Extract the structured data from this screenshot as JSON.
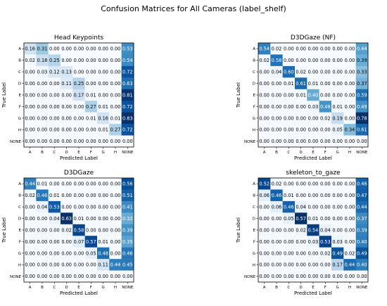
{
  "figure": {
    "suptitle": "Confusion Matrices for All Cameras (label_shelf)"
  },
  "chart_data": [
    {
      "type": "heatmap",
      "title": "Head Keypoints",
      "xlabel": "Predicted Label",
      "ylabel": "True Label",
      "rows": [
        "A",
        "B",
        "C",
        "D",
        "E",
        "F",
        "G",
        "H",
        "NONE"
      ],
      "cols": [
        "A",
        "B",
        "C",
        "D",
        "E",
        "F",
        "G",
        "H",
        "NONE"
      ],
      "values": [
        [
          0.16,
          0.31,
          0.0,
          0.0,
          0.0,
          0.0,
          0.0,
          0.0,
          0.53
        ],
        [
          0.02,
          0.18,
          0.25,
          0.0,
          0.0,
          0.0,
          0.0,
          0.0,
          0.54
        ],
        [
          0.0,
          0.03,
          0.12,
          0.13,
          0.0,
          0.0,
          0.0,
          0.0,
          0.72
        ],
        [
          0.0,
          0.0,
          0.0,
          0.11,
          0.25,
          0.0,
          0.0,
          0.0,
          0.63
        ],
        [
          0.0,
          0.0,
          0.0,
          0.0,
          0.17,
          0.01,
          0.0,
          0.0,
          0.81
        ],
        [
          0.0,
          0.0,
          0.0,
          0.0,
          0.0,
          0.27,
          0.01,
          0.0,
          0.72
        ],
        [
          0.0,
          0.0,
          0.0,
          0.0,
          0.0,
          0.01,
          0.16,
          0.01,
          0.83
        ],
        [
          0.0,
          0.0,
          0.0,
          0.0,
          0.0,
          0.0,
          0.01,
          0.27,
          0.72
        ],
        [
          0.0,
          0.0,
          0.0,
          0.0,
          0.0,
          0.0,
          0.0,
          0.0,
          0.0
        ]
      ],
      "colormap": "Blues",
      "vmin": 0,
      "vmax": 0.83
    },
    {
      "type": "heatmap",
      "title": "D3DGaze (NF)",
      "xlabel": "Predicted Label",
      "ylabel": "True Label",
      "rows": [
        "A",
        "B",
        "C",
        "D",
        "E",
        "F",
        "G",
        "H",
        "NONE"
      ],
      "cols": [
        "A",
        "B",
        "C",
        "D",
        "E",
        "F",
        "G",
        "H",
        "NONE"
      ],
      "values": [
        [
          0.54,
          0.02,
          0.0,
          0.0,
          0.0,
          0.0,
          0.0,
          0.0,
          0.44
        ],
        [
          0.02,
          0.58,
          0.0,
          0.0,
          0.0,
          0.0,
          0.0,
          0.0,
          0.39
        ],
        [
          0.0,
          0.04,
          0.6,
          0.02,
          0.0,
          0.0,
          0.0,
          0.0,
          0.33
        ],
        [
          0.0,
          0.0,
          0.01,
          0.61,
          0.01,
          0.0,
          0.0,
          0.0,
          0.37
        ],
        [
          0.0,
          0.0,
          0.0,
          0.01,
          0.4,
          0.0,
          0.0,
          0.0,
          0.59
        ],
        [
          0.0,
          0.0,
          0.0,
          0.0,
          0.03,
          0.48,
          0.01,
          0.0,
          0.49
        ],
        [
          0.0,
          0.0,
          0.0,
          0.0,
          0.0,
          0.02,
          0.19,
          0.0,
          0.78
        ],
        [
          0.0,
          0.0,
          0.0,
          0.0,
          0.0,
          0.0,
          0.05,
          0.34,
          0.61
        ],
        [
          0.0,
          0.0,
          0.0,
          0.0,
          0.0,
          0.0,
          0.0,
          0.0,
          0.0
        ]
      ],
      "colormap": "Blues",
      "vmin": 0,
      "vmax": 0.78
    },
    {
      "type": "heatmap",
      "title": "D3DGaze",
      "xlabel": "Predicted Label",
      "ylabel": "True Label",
      "rows": [
        "A",
        "B",
        "C",
        "D",
        "E",
        "F",
        "G",
        "H",
        "NONE"
      ],
      "cols": [
        "A",
        "B",
        "C",
        "D",
        "E",
        "F",
        "G",
        "H",
        "NONE"
      ],
      "values": [
        [
          0.44,
          0.01,
          0.0,
          0.0,
          0.0,
          0.0,
          0.0,
          0.0,
          0.56
        ],
        [
          0.02,
          0.46,
          0.01,
          0.0,
          0.0,
          0.0,
          0.0,
          0.0,
          0.51
        ],
        [
          0.0,
          0.04,
          0.53,
          0.0,
          0.0,
          0.0,
          0.0,
          0.0,
          0.41
        ],
        [
          0.0,
          0.0,
          0.04,
          0.63,
          0.01,
          0.0,
          0.0,
          0.0,
          0.32
        ],
        [
          0.0,
          0.0,
          0.0,
          0.02,
          0.58,
          0.0,
          0.0,
          0.0,
          0.39
        ],
        [
          0.0,
          0.0,
          0.0,
          0.0,
          0.07,
          0.57,
          0.01,
          0.0,
          0.35
        ],
        [
          0.0,
          0.0,
          0.0,
          0.0,
          0.0,
          0.05,
          0.48,
          0.0,
          0.46
        ],
        [
          0.0,
          0.0,
          0.0,
          0.0,
          0.0,
          0.0,
          0.11,
          0.44,
          0.45
        ],
        [
          0.0,
          0.0,
          0.0,
          0.0,
          0.0,
          0.0,
          0.0,
          0.0,
          0.0
        ]
      ],
      "colormap": "Blues",
      "vmin": 0,
      "vmax": 0.63
    },
    {
      "type": "heatmap",
      "title": "skeleton_to_gaze",
      "xlabel": "Predicted Label",
      "ylabel": "True Label",
      "rows": [
        "A",
        "B",
        "C",
        "D",
        "E",
        "F",
        "G",
        "H",
        "NONE"
      ],
      "cols": [
        "A",
        "B",
        "C",
        "D",
        "E",
        "F",
        "G",
        "H",
        "NONE"
      ],
      "values": [
        [
          0.52,
          0.02,
          0.0,
          0.0,
          0.0,
          0.0,
          0.0,
          0.0,
          0.46
        ],
        [
          0.06,
          0.46,
          0.01,
          0.0,
          0.0,
          0.0,
          0.0,
          0.0,
          0.47
        ],
        [
          0.0,
          0.06,
          0.46,
          0.04,
          0.0,
          0.0,
          0.0,
          0.0,
          0.44
        ],
        [
          0.0,
          0.0,
          0.05,
          0.57,
          0.01,
          0.0,
          0.0,
          0.0,
          0.37
        ],
        [
          0.0,
          0.0,
          0.0,
          0.02,
          0.54,
          0.04,
          0.0,
          0.0,
          0.39
        ],
        [
          0.0,
          0.0,
          0.0,
          0.0,
          0.03,
          0.53,
          0.03,
          0.0,
          0.4
        ],
        [
          0.0,
          0.0,
          0.0,
          0.0,
          0.0,
          0.02,
          0.49,
          0.02,
          0.49
        ],
        [
          0.0,
          0.0,
          0.0,
          0.0,
          0.0,
          0.0,
          0.17,
          0.44,
          0.4
        ],
        [
          0.0,
          0.0,
          0.0,
          0.0,
          0.0,
          0.0,
          0.0,
          0.0,
          0.0
        ]
      ],
      "colormap": "Blues",
      "vmin": 0,
      "vmax": 0.57
    }
  ]
}
